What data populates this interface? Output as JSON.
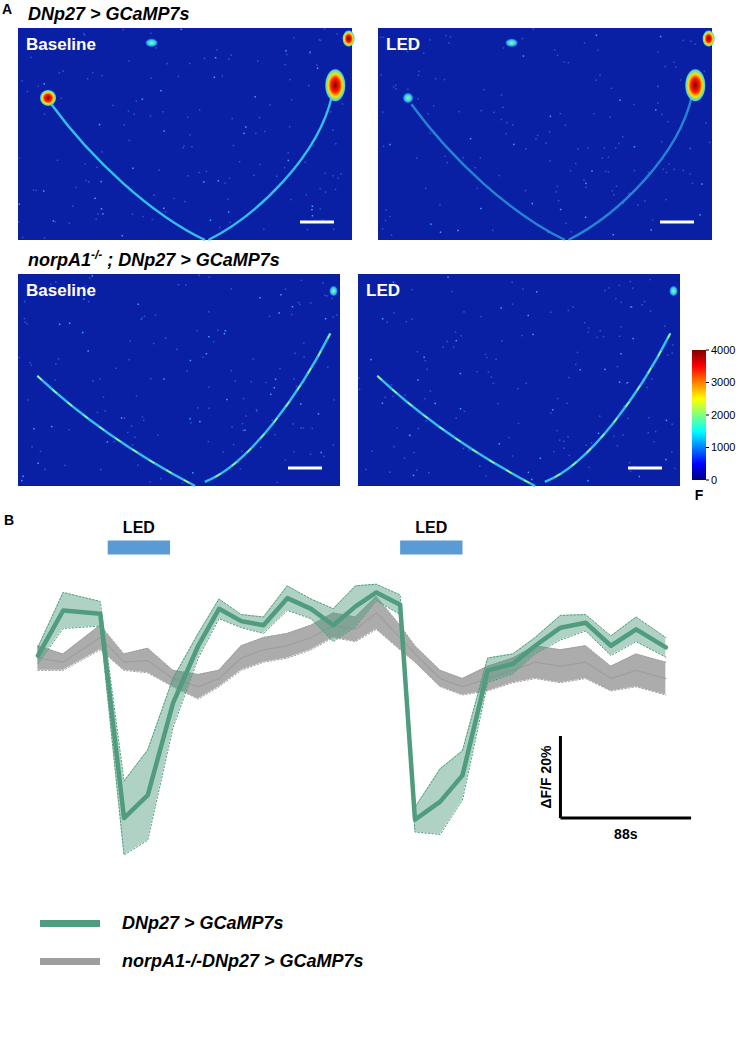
{
  "panel_a": {
    "label": "A",
    "rows": [
      {
        "title": [
          {
            "text": "DNp27 > GCaMP7s"
          }
        ],
        "images": [
          "Baseline",
          "LED"
        ]
      },
      {
        "title": [
          {
            "text": "norpA1"
          },
          {
            "text": "-/-",
            "sup": true
          },
          {
            "text": " ; DNp27 > GCaMP7s"
          }
        ],
        "images": [
          "Baseline",
          "LED"
        ]
      }
    ],
    "colorbar": {
      "range": [
        0,
        4000
      ],
      "ticks": [
        0,
        1000,
        2000,
        3000,
        4000
      ],
      "label": "F"
    }
  },
  "chart_data": {
    "label": "B",
    "type": "line",
    "x": [
      0,
      17,
      42,
      58,
      74,
      91,
      108,
      122,
      137,
      152,
      168,
      184,
      199,
      214,
      228,
      244,
      254,
      271,
      286,
      303,
      320,
      335,
      352,
      369,
      386,
      403,
      423
    ],
    "xlim": [
      -5,
      445
    ],
    "ylim": [
      -58,
      20
    ],
    "tick_labels": false,
    "legend": "bottom",
    "series": [
      {
        "name": "DNp27 > GCaMP7s",
        "color": "#4f9c7e",
        "values": [
          -4.4,
          6.6,
          5.8,
          -44,
          -38.4,
          -16,
          -2,
          7,
          4,
          3,
          9.6,
          7,
          3,
          7.6,
          11,
          8,
          -44.4,
          -40,
          -33.6,
          -8,
          -6.4,
          -2,
          2.4,
          3.6,
          -2,
          2,
          -2.4
        ],
        "error": [
          2,
          4.4,
          3,
          9,
          11,
          6,
          3,
          2.4,
          1.6,
          2,
          3,
          2.4,
          4,
          5,
          2,
          2.4,
          3,
          8,
          6,
          3,
          2.4,
          2,
          3,
          2,
          2.4,
          3,
          2.4
        ]
      },
      {
        "name": "norpA1-/-DNp27 > GCaMP7s",
        "color": "#9e9e9e",
        "values": [
          -5,
          -6,
          0,
          -6,
          -5.6,
          -10,
          -12,
          -10,
          -5,
          -3,
          -2,
          0,
          3,
          2,
          6,
          0,
          -4,
          -10,
          -12,
          -10,
          -8,
          -6,
          -7,
          -6,
          -10,
          -8,
          -10
        ],
        "error": [
          3,
          2,
          3,
          2,
          3,
          2,
          3,
          2,
          3,
          3,
          3,
          3,
          3,
          3,
          4,
          3,
          2,
          2,
          2,
          3,
          3,
          4,
          4,
          4,
          3,
          4,
          4
        ]
      }
    ],
    "annotations": [
      {
        "text": "LED",
        "x_start": 47,
        "x_end": 89
      },
      {
        "text": "LED",
        "x_start": 244,
        "x_end": 286
      }
    ],
    "scale_bars": [
      {
        "label": "ΔF/F 20%",
        "axis": "y",
        "length": 20,
        "x": 352,
        "y": -44
      },
      {
        "label": "88s",
        "axis": "x",
        "length": 88,
        "x": 352,
        "y": -44
      }
    ]
  }
}
